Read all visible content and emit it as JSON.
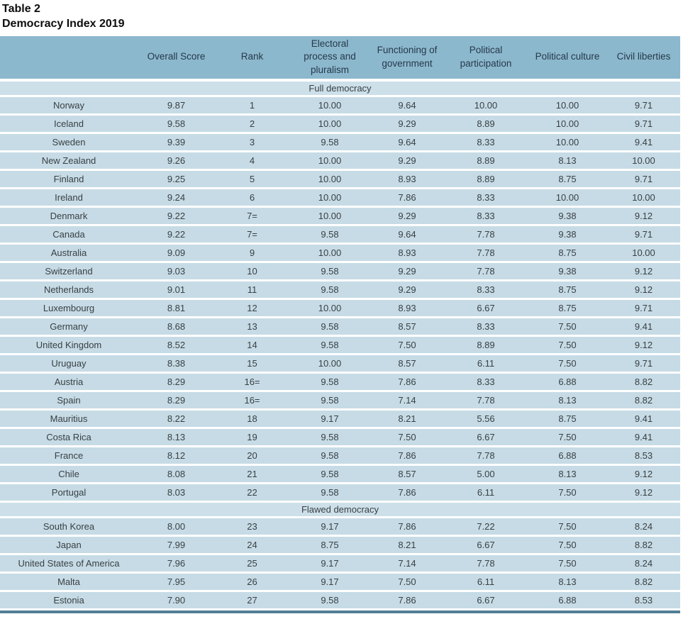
{
  "title": {
    "line1": "Table 2",
    "line2": "Democracy Index 2019"
  },
  "table": {
    "columns": [
      "",
      "Overall Score",
      "Rank",
      "Electoral\nprocess and\npluralism",
      "Functioning of\ngovernment",
      "Political\nparticipation",
      "Political culture",
      "Civil liberties"
    ],
    "sections": [
      {
        "label": "Full democracy",
        "rows": [
          [
            "Norway",
            "9.87",
            "1",
            "10.00",
            "9.64",
            "10.00",
            "10.00",
            "9.71"
          ],
          [
            "Iceland",
            "9.58",
            "2",
            "10.00",
            "9.29",
            "8.89",
            "10.00",
            "9.71"
          ],
          [
            "Sweden",
            "9.39",
            "3",
            "9.58",
            "9.64",
            "8.33",
            "10.00",
            "9.41"
          ],
          [
            "New Zealand",
            "9.26",
            "4",
            "10.00",
            "9.29",
            "8.89",
            "8.13",
            "10.00"
          ],
          [
            "Finland",
            "9.25",
            "5",
            "10.00",
            "8.93",
            "8.89",
            "8.75",
            "9.71"
          ],
          [
            "Ireland",
            "9.24",
            "6",
            "10.00",
            "7.86",
            "8.33",
            "10.00",
            "10.00"
          ],
          [
            "Denmark",
            "9.22",
            "7=",
            "10.00",
            "9.29",
            "8.33",
            "9.38",
            "9.12"
          ],
          [
            "Canada",
            "9.22",
            "7=",
            "9.58",
            "9.64",
            "7.78",
            "9.38",
            "9.71"
          ],
          [
            "Australia",
            "9.09",
            "9",
            "10.00",
            "8.93",
            "7.78",
            "8.75",
            "10.00"
          ],
          [
            "Switzerland",
            "9.03",
            "10",
            "9.58",
            "9.29",
            "7.78",
            "9.38",
            "9.12"
          ],
          [
            "Netherlands",
            "9.01",
            "11",
            "9.58",
            "9.29",
            "8.33",
            "8.75",
            "9.12"
          ],
          [
            "Luxembourg",
            "8.81",
            "12",
            "10.00",
            "8.93",
            "6.67",
            "8.75",
            "9.71"
          ],
          [
            "Germany",
            "8.68",
            "13",
            "9.58",
            "8.57",
            "8.33",
            "7.50",
            "9.41"
          ],
          [
            "United Kingdom",
            "8.52",
            "14",
            "9.58",
            "7.50",
            "8.89",
            "7.50",
            "9.12"
          ],
          [
            "Uruguay",
            "8.38",
            "15",
            "10.00",
            "8.57",
            "6.11",
            "7.50",
            "9.71"
          ],
          [
            "Austria",
            "8.29",
            "16=",
            "9.58",
            "7.86",
            "8.33",
            "6.88",
            "8.82"
          ],
          [
            "Spain",
            "8.29",
            "16=",
            "9.58",
            "7.14",
            "7.78",
            "8.13",
            "8.82"
          ],
          [
            "Mauritius",
            "8.22",
            "18",
            "9.17",
            "8.21",
            "5.56",
            "8.75",
            "9.41"
          ],
          [
            "Costa Rica",
            "8.13",
            "19",
            "9.58",
            "7.50",
            "6.67",
            "7.50",
            "9.41"
          ],
          [
            "France",
            "8.12",
            "20",
            "9.58",
            "7.86",
            "7.78",
            "6.88",
            "8.53"
          ],
          [
            "Chile",
            "8.08",
            "21",
            "9.58",
            "8.57",
            "5.00",
            "8.13",
            "9.12"
          ],
          [
            "Portugal",
            "8.03",
            "22",
            "9.58",
            "7.86",
            "6.11",
            "7.50",
            "9.12"
          ]
        ]
      },
      {
        "label": "Flawed democracy",
        "rows": [
          [
            "South Korea",
            "8.00",
            "23",
            "9.17",
            "7.86",
            "7.22",
            "7.50",
            "8.24"
          ],
          [
            "Japan",
            "7.99",
            "24",
            "8.75",
            "8.21",
            "6.67",
            "7.50",
            "8.82"
          ],
          [
            "United States of America",
            "7.96",
            "25",
            "9.17",
            "7.14",
            "7.78",
            "7.50",
            "8.24"
          ],
          [
            "Malta",
            "7.95",
            "26",
            "9.17",
            "7.50",
            "6.11",
            "8.13",
            "8.82"
          ],
          [
            "Estonia",
            "7.90",
            "27",
            "9.58",
            "7.86",
            "6.67",
            "6.88",
            "8.53"
          ]
        ]
      }
    ]
  },
  "colors": {
    "header_bg": "#8cb8cd",
    "header_text": "#26394b",
    "row_bg": "#c6dbe5",
    "section_row_bg": "#cde0e9",
    "body_text": "#3a4045",
    "row_separator": "#ffffff",
    "bottom_rule": "#537e96",
    "title_text": "#0d0d0d"
  }
}
